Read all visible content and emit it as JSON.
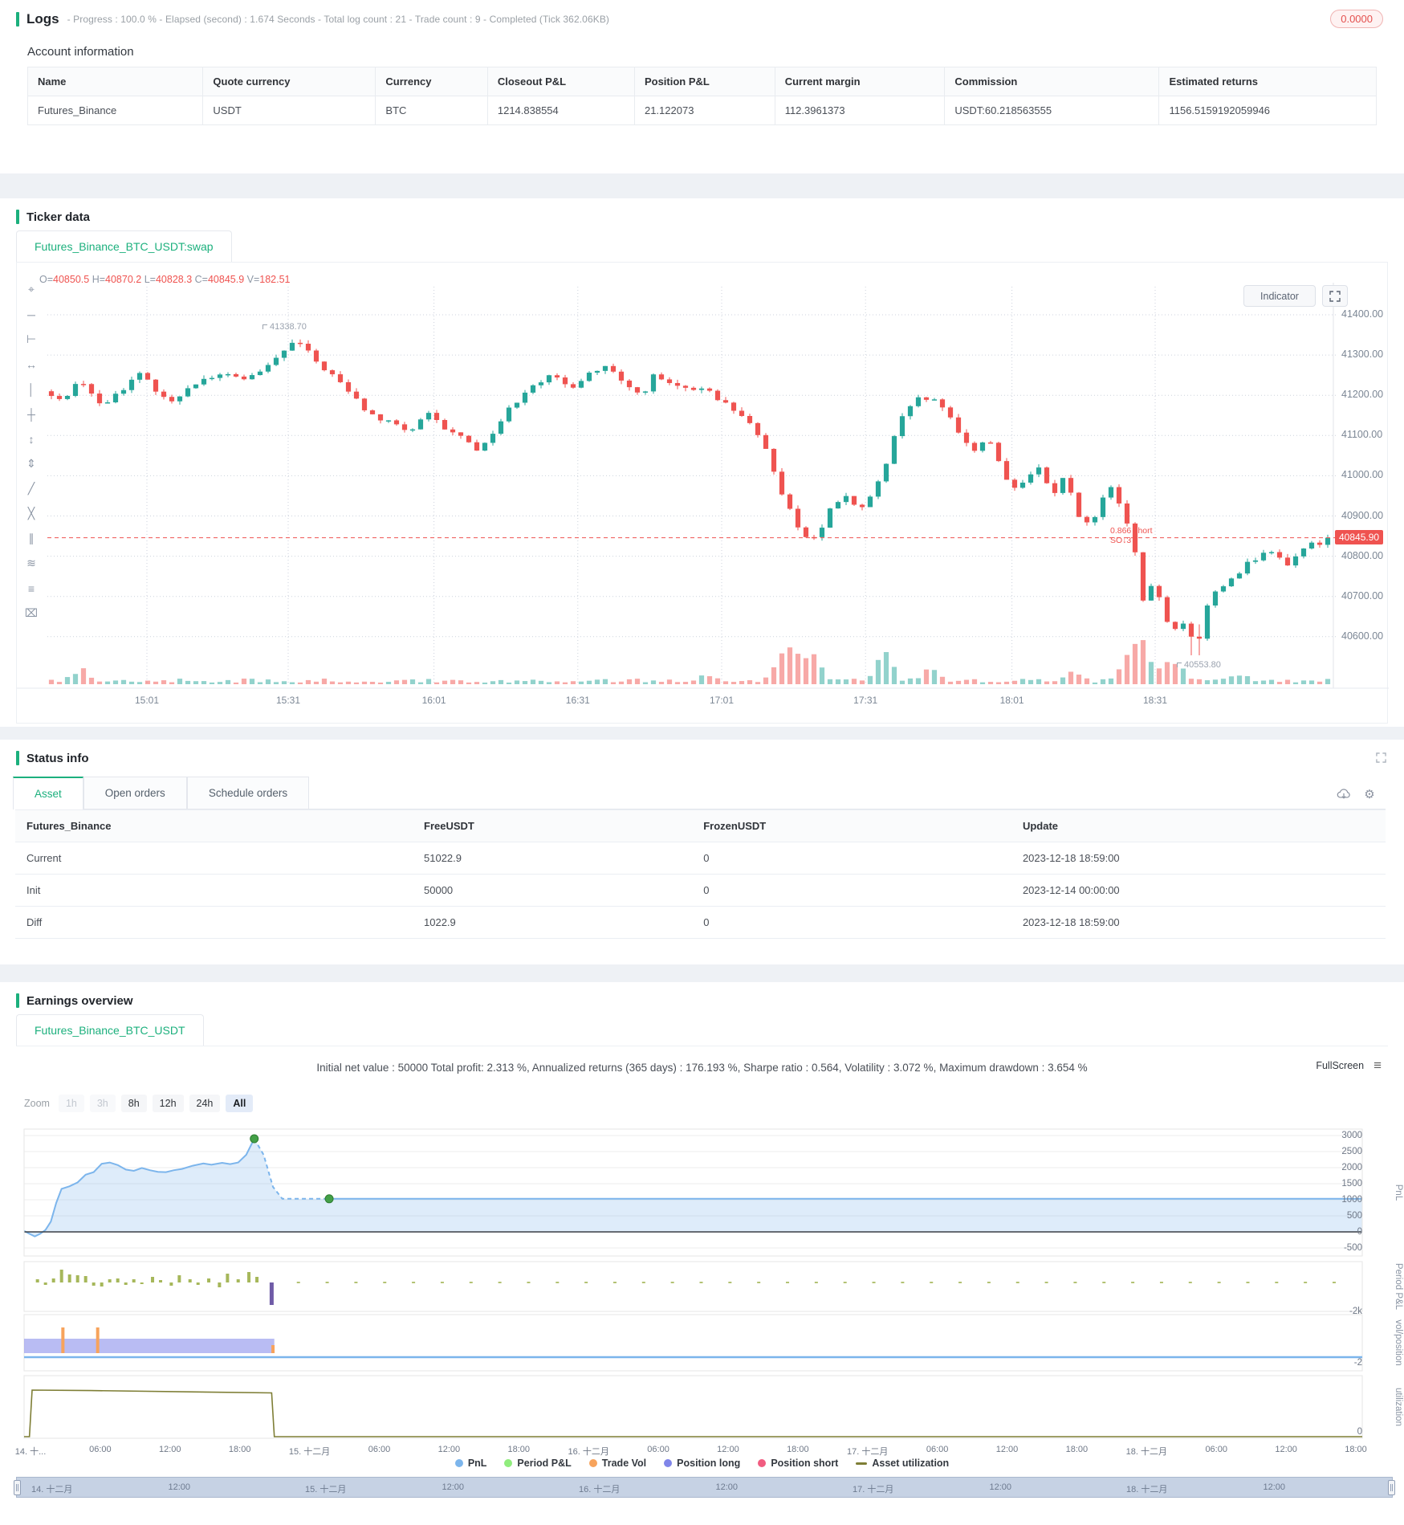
{
  "colors": {
    "accent_green": "#1cb07d",
    "candle_up": "#26a69a",
    "candle_down": "#ef5350",
    "price_line_red": "#ef5350",
    "link_blue": "#409eff",
    "alert_red": "#ef4d4d",
    "pnl_blue": "#7cb5ec",
    "period_green": "#90ed7d",
    "trade_orange": "#f7a35c",
    "long_purple": "#8085e9",
    "short_pink": "#f15c80",
    "utilization_olive": "#7e7e35"
  },
  "logs": {
    "title": "Logs",
    "meta": "- Progress : 100.0 % - Elapsed (second) : 1.674  Seconds - Total log count : 21 - Trade count : 9 - Completed (Tick 362.06KB)",
    "badge": "0.0000"
  },
  "account": {
    "title": "Account information",
    "headers": [
      "Name",
      "Quote currency",
      "Currency",
      "Closeout P&L",
      "Position P&L",
      "Current margin",
      "Commission",
      "Estimated returns"
    ],
    "row": [
      "Futures_Binance",
      "USDT",
      "BTC",
      "1214.838554",
      "21.122073",
      "112.3961373",
      "USDT:60.218563555",
      "1156.5159192059946"
    ]
  },
  "ticker": {
    "title": "Ticker data",
    "tab": "Futures_Binance_BTC_USDT:swap",
    "ohlc": [
      {
        "label": "O=",
        "value": "40850.5"
      },
      {
        "label": "H=",
        "value": "40870.2"
      },
      {
        "label": "L=",
        "value": "40828.3"
      },
      {
        "label": "C=",
        "value": "40845.9"
      },
      {
        "label": "V=",
        "value": "182.51"
      }
    ],
    "indicator_label": "Indicator",
    "price_ticks": [
      "41400.00",
      "41300.00",
      "41200.00",
      "41100.00",
      "41000.00",
      "40900.00",
      "40800.00",
      "40700.00",
      "40600.00"
    ],
    "current_price": "40845.90",
    "time_ticks": [
      {
        "t": 0.0775,
        "label": "15:01"
      },
      {
        "t": 0.1875,
        "label": "15:31"
      },
      {
        "t": 0.301,
        "label": "16:01"
      },
      {
        "t": 0.413,
        "label": "16:31"
      },
      {
        "t": 0.525,
        "label": "17:01"
      },
      {
        "t": 0.637,
        "label": "17:31"
      },
      {
        "t": 0.751,
        "label": "18:01"
      },
      {
        "t": 0.8625,
        "label": "18:31"
      }
    ],
    "annotations": {
      "high": "41338.70",
      "low": "40553.80"
    },
    "trade_marker": {
      "qty": "0.866",
      "side": "short",
      "tag": "SO↓3"
    },
    "toolbar_tools": [
      "crosshair",
      "horizontal-line",
      "horizontal-ray",
      "arrow-line",
      "vertical-line",
      "cross-line",
      "price-range",
      "date-range",
      "trend-line",
      "cross-tool",
      "parallel-lines",
      "wave-line",
      "settings",
      "delete"
    ]
  },
  "status": {
    "title": "Status info",
    "tabs": [
      "Asset",
      "Open orders",
      "Schedule orders"
    ],
    "active_tab": "Asset",
    "headers": [
      "Futures_Binance",
      "FreeUSDT",
      "FrozenUSDT",
      "Update"
    ],
    "rows": [
      [
        "Current",
        "51022.9",
        "0",
        "2023-12-18 18:59:00"
      ],
      [
        "Init",
        "50000",
        "0",
        "2023-12-14 00:00:00"
      ],
      [
        "Diff",
        "1022.9",
        "0",
        "2023-12-18 18:59:00"
      ]
    ]
  },
  "earnings": {
    "title": "Earnings overview",
    "tab": "Futures_Binance_BTC_USDT",
    "stats": "Initial net value : 50000 Total profit: 2.313 %, Annualized returns (365 days) : 176.193 %, Sharpe ratio : 0.564, Volatility : 3.072 %, Maximum drawdown : 3.654 %",
    "fullscreen_label": "FullScreen",
    "zoom": {
      "label": "Zoom",
      "options": [
        {
          "label": "1h",
          "state": "disabled"
        },
        {
          "label": "3h",
          "state": "disabled"
        },
        {
          "label": "8h",
          "state": "normal"
        },
        {
          "label": "12h",
          "state": "normal"
        },
        {
          "label": "24h",
          "state": "normal"
        },
        {
          "label": "All",
          "state": "active"
        }
      ]
    },
    "axes": {
      "pnl_ticks": [
        3000,
        2500,
        2000,
        1500,
        1000,
        500,
        0,
        -500
      ],
      "pnl_label": "PnL",
      "period_min": "-2k",
      "period_label": "Period P&L",
      "volpos_min": "-2",
      "volpos_label": "vol/position",
      "util_min": "0",
      "util_label": "utilization"
    },
    "x_labels": [
      "14. 十...",
      "06:00",
      "12:00",
      "18:00",
      "15. 十二月",
      "06:00",
      "12:00",
      "18:00",
      "16. 十二月",
      "06:00",
      "12:00",
      "18:00",
      "17. 十二月",
      "06:00",
      "12:00",
      "18:00",
      "18. 十二月",
      "06:00",
      "12:00",
      "18:00"
    ],
    "legend": [
      {
        "label": "PnL",
        "color": "#7cb5ec",
        "type": "dot"
      },
      {
        "label": "Period P&L",
        "color": "#90ed7d",
        "type": "dot"
      },
      {
        "label": "Trade Vol",
        "color": "#f7a35c",
        "type": "dot"
      },
      {
        "label": "Position long",
        "color": "#8085e9",
        "type": "dot"
      },
      {
        "label": "Position short",
        "color": "#f15c80",
        "type": "dot"
      },
      {
        "label": "Asset utilization",
        "color": "#7e7e35",
        "type": "dash"
      }
    ],
    "navigator_labels": [
      "14. 十二月",
      "12:00",
      "15. 十二月",
      "12:00",
      "16. 十二月",
      "12:00",
      "17. 十二月",
      "12:00",
      "18. 十二月",
      "12:00"
    ]
  },
  "chart_data": [
    {
      "type": "candlestick",
      "title": "Futures_Binance_BTC_USDT:swap 1m",
      "note": "values estimated from pixels; waypoints are [time-fraction, price]",
      "ylim": [
        40553.8,
        41400
      ],
      "last_close": 40845.9,
      "session_high": 41338.7,
      "session_low": 40553.8,
      "waypoints": [
        [
          0,
          41210
        ],
        [
          0.012,
          41185
        ],
        [
          0.03,
          41240
        ],
        [
          0.045,
          41170
        ],
        [
          0.06,
          41215
        ],
        [
          0.075,
          41250
        ],
        [
          0.09,
          41210
        ],
        [
          0.1,
          41180
        ],
        [
          0.115,
          41230
        ],
        [
          0.13,
          41245
        ],
        [
          0.145,
          41250
        ],
        [
          0.16,
          41240
        ],
        [
          0.175,
          41270
        ],
        [
          0.19,
          41320
        ],
        [
          0.198,
          41335
        ],
        [
          0.21,
          41290
        ],
        [
          0.225,
          41250
        ],
        [
          0.24,
          41200
        ],
        [
          0.255,
          41150
        ],
        [
          0.27,
          41130
        ],
        [
          0.285,
          41110
        ],
        [
          0.3,
          41150
        ],
        [
          0.315,
          41110
        ],
        [
          0.33,
          41090
        ],
        [
          0.34,
          41060
        ],
        [
          0.35,
          41110
        ],
        [
          0.365,
          41175
        ],
        [
          0.38,
          41230
        ],
        [
          0.395,
          41245
        ],
        [
          0.41,
          41220
        ],
        [
          0.425,
          41255
        ],
        [
          0.44,
          41270
        ],
        [
          0.45,
          41230
        ],
        [
          0.465,
          41200
        ],
        [
          0.475,
          41245
        ],
        [
          0.49,
          41225
        ],
        [
          0.505,
          41205
        ],
        [
          0.515,
          41225
        ],
        [
          0.53,
          41180
        ],
        [
          0.545,
          41150
        ],
        [
          0.555,
          41100
        ],
        [
          0.565,
          41050
        ],
        [
          0.575,
          40960
        ],
        [
          0.585,
          40890
        ],
        [
          0.595,
          40840
        ],
        [
          0.605,
          40860
        ],
        [
          0.615,
          40930
        ],
        [
          0.625,
          40950
        ],
        [
          0.635,
          40905
        ],
        [
          0.645,
          40955
        ],
        [
          0.655,
          41010
        ],
        [
          0.665,
          41120
        ],
        [
          0.675,
          41175
        ],
        [
          0.685,
          41195
        ],
        [
          0.695,
          41180
        ],
        [
          0.705,
          41150
        ],
        [
          0.715,
          41100
        ],
        [
          0.725,
          41060
        ],
        [
          0.735,
          41100
        ],
        [
          0.745,
          41030
        ],
        [
          0.755,
          40960
        ],
        [
          0.765,
          40985
        ],
        [
          0.775,
          41020
        ],
        [
          0.785,
          40950
        ],
        [
          0.795,
          41000
        ],
        [
          0.805,
          40910
        ],
        [
          0.815,
          40870
        ],
        [
          0.825,
          40940
        ],
        [
          0.833,
          40980
        ],
        [
          0.84,
          40900
        ],
        [
          0.848,
          40850
        ],
        [
          0.856,
          40680
        ],
        [
          0.864,
          40740
        ],
        [
          0.872,
          40660
        ],
        [
          0.88,
          40610
        ],
        [
          0.888,
          40640
        ],
        [
          0.895,
          40580
        ],
        [
          0.902,
          40650
        ],
        [
          0.91,
          40700
        ],
        [
          0.92,
          40730
        ],
        [
          0.93,
          40760
        ],
        [
          0.94,
          40790
        ],
        [
          0.95,
          40810
        ],
        [
          0.96,
          40800
        ],
        [
          0.97,
          40780
        ],
        [
          0.98,
          40820
        ],
        [
          0.99,
          40830
        ],
        [
          1,
          40846
        ]
      ],
      "vol_spikes": [
        {
          "t": 0.03,
          "h": 14
        },
        {
          "t": 0.515,
          "h": 8
        },
        {
          "t": 0.575,
          "h": 26
        },
        {
          "t": 0.585,
          "h": 34
        },
        {
          "t": 0.6,
          "h": 30
        },
        {
          "t": 0.655,
          "h": 36
        },
        {
          "t": 0.69,
          "h": 14
        },
        {
          "t": 0.8,
          "h": 10
        },
        {
          "t": 0.845,
          "h": 30
        },
        {
          "t": 0.856,
          "h": 44
        },
        {
          "t": 0.875,
          "h": 20
        },
        {
          "t": 0.885,
          "h": 14
        },
        {
          "t": 0.93,
          "h": 8
        }
      ]
    },
    {
      "type": "area",
      "name": "PnL",
      "ylim": [
        -500,
        3000
      ],
      "solid": [
        [
          0,
          30
        ],
        [
          0.004,
          -60
        ],
        [
          0.008,
          -140
        ],
        [
          0.012,
          -60
        ],
        [
          0.016,
          60
        ],
        [
          0.02,
          320
        ],
        [
          0.024,
          900
        ],
        [
          0.028,
          1340
        ],
        [
          0.034,
          1420
        ],
        [
          0.04,
          1540
        ],
        [
          0.046,
          1780
        ],
        [
          0.052,
          1860
        ],
        [
          0.058,
          2120
        ],
        [
          0.064,
          2160
        ],
        [
          0.07,
          2080
        ],
        [
          0.076,
          1940
        ],
        [
          0.082,
          1900
        ],
        [
          0.088,
          1990
        ],
        [
          0.094,
          1920
        ],
        [
          0.1,
          1870
        ],
        [
          0.106,
          1860
        ],
        [
          0.112,
          1920
        ],
        [
          0.118,
          1960
        ],
        [
          0.126,
          2060
        ],
        [
          0.134,
          2130
        ],
        [
          0.14,
          2090
        ],
        [
          0.148,
          2150
        ],
        [
          0.154,
          2110
        ],
        [
          0.16,
          2160
        ],
        [
          0.166,
          2400
        ],
        [
          0.172,
          2900
        ]
      ],
      "dashed": [
        [
          0.172,
          2900
        ],
        [
          0.179,
          2400
        ],
        [
          0.186,
          1400
        ],
        [
          0.193,
          1030
        ],
        [
          0.228,
          1030
        ]
      ],
      "flat": [
        [
          0.228,
          1030
        ],
        [
          1,
          1030
        ]
      ],
      "markers": [
        [
          0.172,
          2900
        ],
        [
          0.228,
          1030
        ]
      ]
    },
    {
      "type": "bar",
      "name": "Period P&L",
      "axis_min_label": "-2k",
      "bars": [
        [
          0.01,
          4
        ],
        [
          0.016,
          -3
        ],
        [
          0.022,
          5
        ],
        [
          0.028,
          16
        ],
        [
          0.034,
          10
        ],
        [
          0.04,
          9
        ],
        [
          0.046,
          8
        ],
        [
          0.052,
          -4
        ],
        [
          0.058,
          -5
        ],
        [
          0.064,
          4
        ],
        [
          0.07,
          5
        ],
        [
          0.076,
          -3
        ],
        [
          0.082,
          4
        ],
        [
          0.088,
          -2
        ],
        [
          0.096,
          7
        ],
        [
          0.102,
          3
        ],
        [
          0.11,
          -4
        ],
        [
          0.116,
          9
        ],
        [
          0.124,
          4
        ],
        [
          0.13,
          -3
        ],
        [
          0.138,
          5
        ],
        [
          0.146,
          -6
        ],
        [
          0.152,
          11
        ],
        [
          0.16,
          4
        ],
        [
          0.168,
          13
        ],
        [
          0.174,
          7
        ]
      ],
      "big_negative_bar": {
        "t": 0.185,
        "h": -28,
        "color": "#6f5ba7"
      }
    },
    {
      "type": "custom",
      "name": "vol/position",
      "axis_min_label": "-2",
      "position_long_band": [
        0,
        0.187
      ],
      "trade_vol_spikes": [
        0.029,
        0.055,
        0.186
      ],
      "baseline_full_width": true
    },
    {
      "type": "line",
      "name": "Asset utilization",
      "axis_min_label": "0",
      "points": [
        [
          0.004,
          0
        ],
        [
          0.006,
          1
        ],
        [
          0.05,
          0.99
        ],
        [
          0.185,
          0.94
        ],
        [
          0.187,
          0
        ],
        [
          1,
          0
        ]
      ]
    }
  ]
}
